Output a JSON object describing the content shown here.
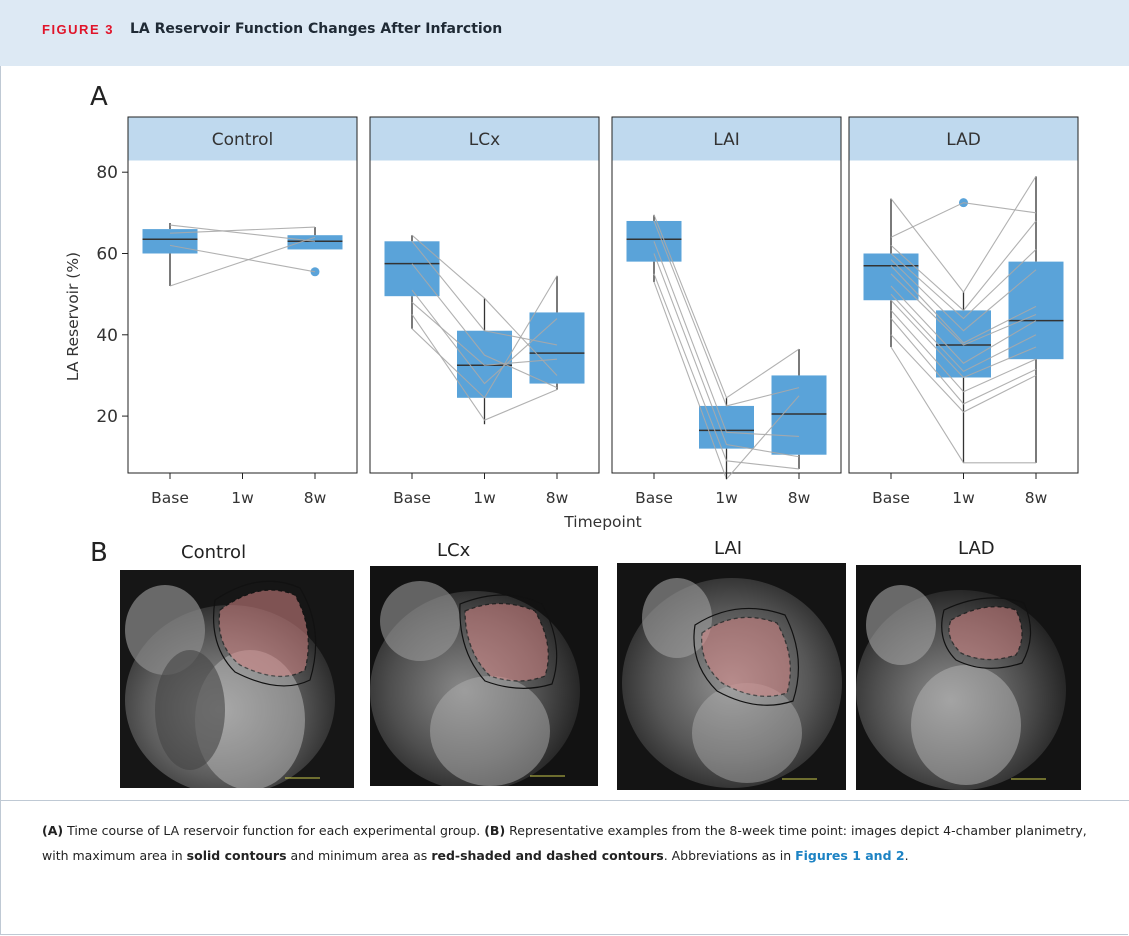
{
  "header": {
    "figure_label": "FIGURE 3",
    "title": "LA Reservoir Function Changes After Infarction"
  },
  "panels": {
    "a_label": "A",
    "b_label": "B"
  },
  "chart_data": {
    "type": "box",
    "ylabel": "LA Reservoir (%)",
    "xlabel": "Timepoint",
    "ylim": [
      6,
      83
    ],
    "yticks": [
      20,
      40,
      60,
      80
    ],
    "timepoints": [
      "Base",
      "1w",
      "8w"
    ],
    "grid": false,
    "facets": [
      {
        "name": "Control",
        "boxes": [
          {
            "x": "Base",
            "q1": 60,
            "median": 63.5,
            "q3": 66,
            "wlo": 52,
            "whi": 67.5,
            "outliers": []
          },
          {
            "x": "8w",
            "q1": 61,
            "median": 63,
            "q3": 64.5,
            "wlo": 61,
            "whi": 66.5,
            "outliers": [
              55.5
            ]
          }
        ],
        "subjects": [
          [
            67,
            null,
            63
          ],
          [
            65,
            null,
            66.5
          ],
          [
            62,
            null,
            55.5
          ],
          [
            52,
            null,
            64
          ]
        ]
      },
      {
        "name": "LCx",
        "boxes": [
          {
            "x": "Base",
            "q1": 49.5,
            "median": 57.5,
            "q3": 63,
            "wlo": 41.5,
            "whi": 64.5,
            "outliers": []
          },
          {
            "x": "1w",
            "q1": 24.5,
            "median": 32.5,
            "q3": 41,
            "wlo": 18,
            "whi": 49,
            "outliers": []
          },
          {
            "x": "8w",
            "q1": 28,
            "median": 35.5,
            "q3": 45.5,
            "wlo": 26.5,
            "whi": 54.5,
            "outliers": []
          }
        ],
        "subjects": [
          [
            64.5,
            49,
            30
          ],
          [
            63,
            41,
            37.5
          ],
          [
            57.5,
            35,
            27
          ],
          [
            51,
            28,
            44
          ],
          [
            48,
            32.5,
            34
          ],
          [
            45,
            19,
            26.5
          ],
          [
            41.5,
            24.5,
            54.5
          ]
        ]
      },
      {
        "name": "LAI",
        "boxes": [
          {
            "x": "Base",
            "q1": 58,
            "median": 63.5,
            "q3": 68,
            "wlo": 53,
            "whi": 69.5,
            "outliers": []
          },
          {
            "x": "1w",
            "q1": 12,
            "median": 16.5,
            "q3": 22.5,
            "wlo": 4.5,
            "whi": 24.5,
            "outliers": []
          },
          {
            "x": "8w",
            "q1": 10.5,
            "median": 20.5,
            "q3": 30,
            "wlo": 7,
            "whi": 36.5,
            "outliers": []
          }
        ],
        "subjects": [
          [
            69.5,
            24.5,
            36.5
          ],
          [
            68,
            22.5,
            27
          ],
          [
            63,
            16,
            15
          ],
          [
            60,
            13,
            10
          ],
          [
            55,
            9,
            7
          ],
          [
            53,
            4.5,
            25
          ]
        ]
      },
      {
        "name": "LAD",
        "boxes": [
          {
            "x": "Base",
            "q1": 48.5,
            "median": 57,
            "q3": 60,
            "wlo": 37,
            "whi": 73.5,
            "outliers": []
          },
          {
            "x": "1w",
            "q1": 29.5,
            "median": 37.5,
            "q3": 46,
            "wlo": 8.5,
            "whi": 50.5,
            "outliers": [
              72.5
            ]
          },
          {
            "x": "8w",
            "q1": 34,
            "median": 43.5,
            "q3": 58,
            "wlo": 8.5,
            "whi": 79,
            "outliers": []
          }
        ],
        "subjects": [
          [
            73.5,
            50.5,
            79
          ],
          [
            64,
            72.5,
            70
          ],
          [
            62,
            46,
            68
          ],
          [
            60,
            44,
            61
          ],
          [
            58.5,
            41,
            56
          ],
          [
            57,
            38,
            47
          ],
          [
            55,
            37.5,
            45
          ],
          [
            52,
            33,
            43.5
          ],
          [
            50,
            31,
            40
          ],
          [
            48.5,
            29.5,
            37
          ],
          [
            46,
            26,
            34
          ],
          [
            44,
            23,
            31.5
          ],
          [
            40,
            21,
            30
          ],
          [
            37,
            8.5,
            8.5
          ]
        ]
      }
    ]
  },
  "images": [
    {
      "label": "Control"
    },
    {
      "label": "LCx"
    },
    {
      "label": "LAI"
    },
    {
      "label": "LAD"
    }
  ],
  "colors": {
    "box_fill": "#5aa3d9",
    "facet_strip": "#bfd9ee",
    "subject_line": "#a9a9a9",
    "header_bg": "#dde9f4",
    "figure_label": "#e0142a",
    "link": "#1d83c4",
    "roi_fill": "#d58686"
  },
  "caption": {
    "a_label": "(A)",
    "a_text": " Time course of LA reservoir function for each experimental group. ",
    "b_label": "(B)",
    "b_text": " Representative examples from the 8-week time point: images depict 4-chamber planimetry, with maximum area in ",
    "bold1": "solid contours",
    "mid_text": " and minimum area as ",
    "bold2": "red-shaded and dashed contours",
    "end_text": ". Abbreviations as in ",
    "link_text": "Figures 1 and 2",
    "final_text": "."
  }
}
